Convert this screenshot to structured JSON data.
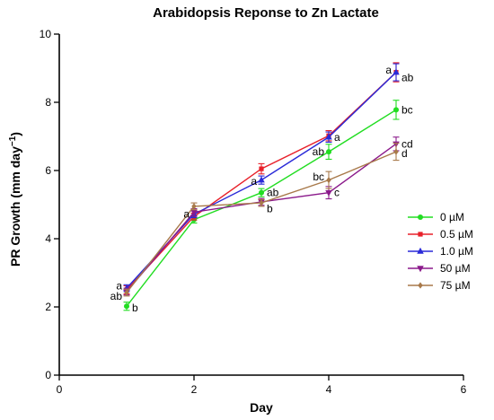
{
  "chart_data": {
    "type": "line",
    "title": "Arabidopsis Reponse to Zn Lactate",
    "xlabel": "Day",
    "ylabel": "PR Growth (mm day",
    "ylabel_sup": "−1",
    "ylabel_close": ")",
    "xlim": [
      0,
      6
    ],
    "ylim": [
      0,
      10
    ],
    "xticks": [
      0,
      2,
      4,
      6
    ],
    "yticks": [
      0,
      2,
      4,
      6,
      8,
      10
    ],
    "grid": false,
    "legend_position": "right",
    "series": [
      {
        "name": "0 µM",
        "color": "#22dd22",
        "marker": "circle",
        "x": [
          1,
          2,
          3,
          4,
          5
        ],
        "y": [
          2.02,
          4.56,
          5.35,
          6.55,
          7.78
        ],
        "err": [
          0.12,
          0.1,
          0.12,
          0.22,
          0.28
        ]
      },
      {
        "name": "0.5 µM",
        "color": "#e8202a",
        "marker": "square",
        "x": [
          1,
          2,
          3,
          4,
          5
        ],
        "y": [
          2.5,
          4.65,
          6.05,
          7.02,
          8.88
        ],
        "err": [
          0.12,
          0.1,
          0.15,
          0.15,
          0.28
        ]
      },
      {
        "name": "1.0 µM",
        "color": "#2a2ad8",
        "marker": "triangle-up",
        "x": [
          1,
          2,
          3,
          4,
          5
        ],
        "y": [
          2.55,
          4.72,
          5.72,
          6.98,
          8.88
        ],
        "err": [
          0.1,
          0.1,
          0.12,
          0.15,
          0.25
        ]
      },
      {
        "name": "50 µM",
        "color": "#8b1a8b",
        "marker": "triangle-down",
        "x": [
          1,
          2,
          3,
          4,
          5
        ],
        "y": [
          2.45,
          4.78,
          5.08,
          5.35,
          6.78
        ],
        "err": [
          0.1,
          0.1,
          0.1,
          0.18,
          0.2
        ]
      },
      {
        "name": "75 µM",
        "color": "#a8794a",
        "marker": "diamond",
        "x": [
          1,
          2,
          3,
          4,
          5
        ],
        "y": [
          2.42,
          4.95,
          5.05,
          5.72,
          6.55
        ],
        "err": [
          0.1,
          0.1,
          0.1,
          0.25,
          0.25
        ]
      }
    ],
    "annotations": [
      {
        "text": "a",
        "x": 1,
        "y": 2.62,
        "side": "left"
      },
      {
        "text": "ab",
        "x": 1,
        "y": 2.32,
        "side": "left"
      },
      {
        "text": "b",
        "x": 1,
        "y": 1.98,
        "side": "right"
      },
      {
        "text": "a",
        "x": 2,
        "y": 4.72,
        "side": "left"
      },
      {
        "text": "a",
        "x": 3,
        "y": 5.68,
        "side": "left"
      },
      {
        "text": "ab",
        "x": 3,
        "y": 5.35,
        "side": "right"
      },
      {
        "text": "b",
        "x": 3,
        "y": 4.88,
        "side": "right"
      },
      {
        "text": "a",
        "x": 4,
        "y": 6.98,
        "side": "right"
      },
      {
        "text": "ab",
        "x": 4,
        "y": 6.55,
        "side": "left"
      },
      {
        "text": "bc",
        "x": 4,
        "y": 5.82,
        "side": "left"
      },
      {
        "text": "c",
        "x": 4,
        "y": 5.35,
        "side": "right"
      },
      {
        "text": "a",
        "x": 5,
        "y": 8.95,
        "side": "left"
      },
      {
        "text": "ab",
        "x": 5,
        "y": 8.72,
        "side": "right"
      },
      {
        "text": "bc",
        "x": 5,
        "y": 7.78,
        "side": "right"
      },
      {
        "text": "cd",
        "x": 5,
        "y": 6.78,
        "side": "right"
      },
      {
        "text": "d",
        "x": 5,
        "y": 6.5,
        "side": "right"
      }
    ]
  }
}
